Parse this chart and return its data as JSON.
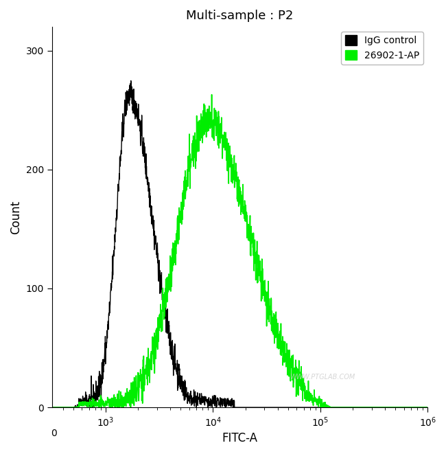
{
  "title": "Multi-sample : P2",
  "xlabel": "FITC-A",
  "ylabel": "Count",
  "xlim_log": [
    2.5,
    6
  ],
  "ylim": [
    0,
    320
  ],
  "yticks": [
    0,
    100,
    200,
    300
  ],
  "plot_bg_color": "#ffffff",
  "igG_color": "#000000",
  "ab_color": "#00ee00",
  "legend_labels": [
    "IgG control",
    "26902-1-AP"
  ],
  "watermark": "WWW.PTGLAB.COM",
  "igG_peak_log": 3.22,
  "igG_peak_count": 263,
  "igG_sigma_log": 0.12,
  "ab_peak_log": 3.95,
  "ab_peak_count": 242,
  "ab_sigma_log": 0.28,
  "noise_seed_igG": 42,
  "noise_seed_ab": 123
}
